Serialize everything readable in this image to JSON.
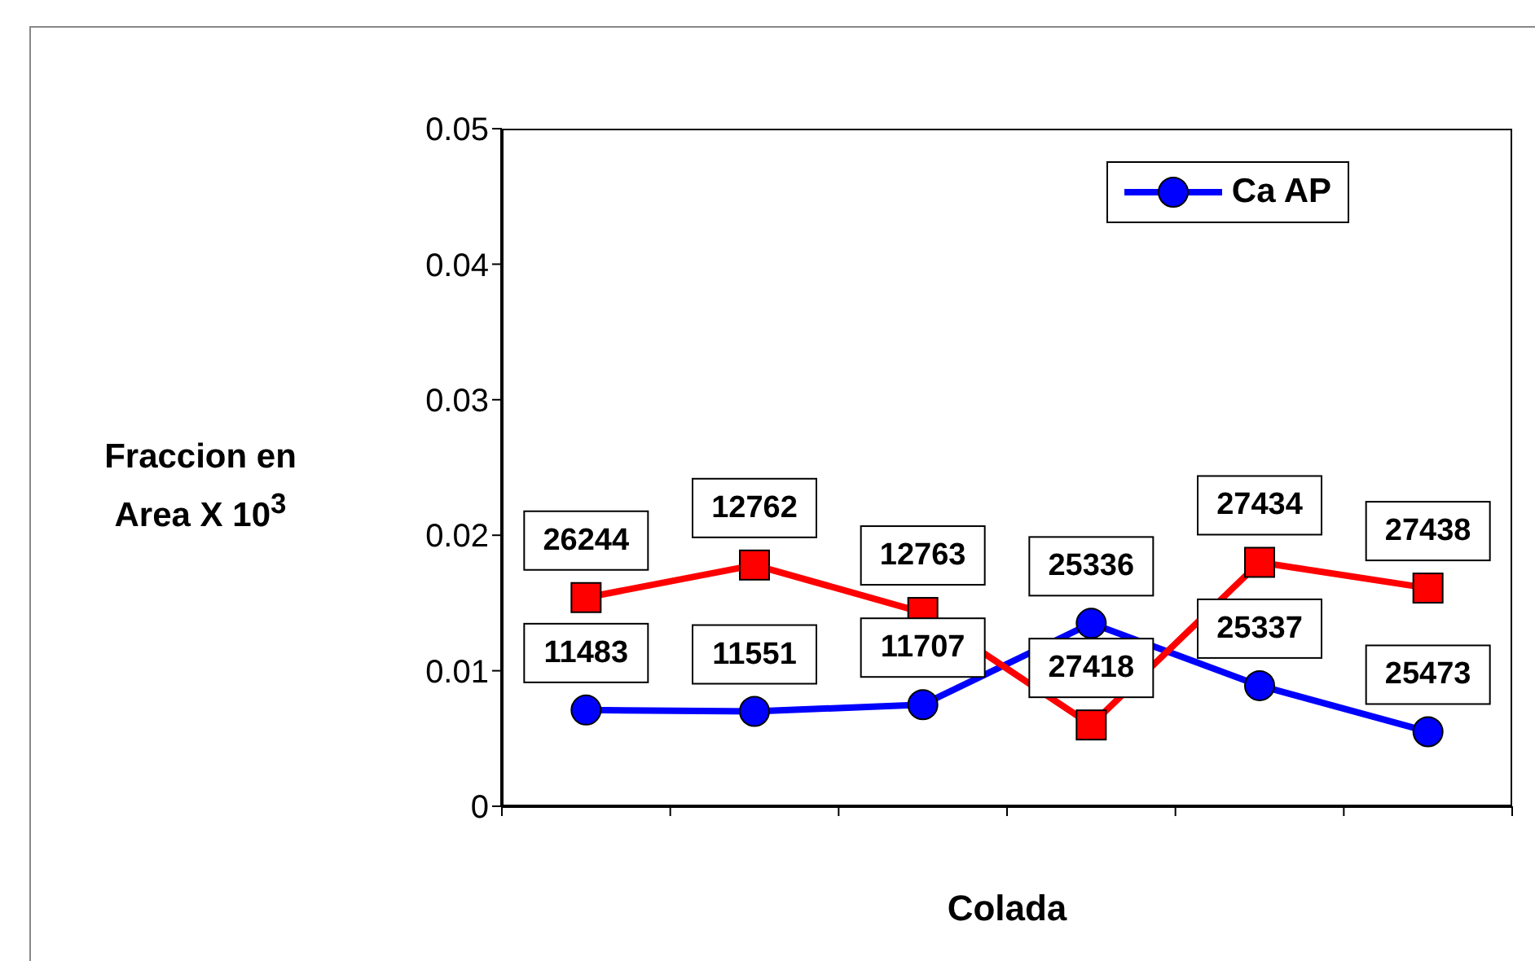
{
  "chart_data": {
    "type": "line",
    "xlabel": "Colada",
    "ylabel": "Fraccion en Area X 10$^{3}$",
    "categories": [
      null,
      null,
      null,
      null,
      null,
      null
    ],
    "series": [
      {
        "name": "Ca AP",
        "color": "#0000ff",
        "marker": "circle",
        "values": [
          0.0071,
          0.007,
          0.0075,
          0.0135,
          0.0089,
          0.0055
        ]
      },
      {
        "color": "#ff0000",
        "marker": "square",
        "values": [
          0.0154,
          0.0178,
          0.0143,
          0.006,
          0.018,
          0.0161
        ]
      }
    ],
    "annotations": [
      {
        "text": "11483",
        "y": 0.0071
      },
      {
        "text": "11551",
        "y": 0.007
      },
      {
        "text": "11707",
        "y": 0.0075
      },
      {
        "text": "25336",
        "y": 0.0135
      },
      {
        "text": "25337",
        "y": 0.0089
      },
      {
        "text": "25473",
        "y": 0.0055
      },
      {
        "text": "26244",
        "y": 0.0154
      },
      {
        "text": "12762",
        "y": 0.0178
      },
      {
        "text": "12763",
        "y": 0.0143
      },
      {
        "text": "27418",
        "y": 0.006
      },
      {
        "text": "27434",
        "y": 0.018
      },
      {
        "text": "27438",
        "y": 0.0161
      }
    ],
    "ylim": [
      0,
      0.05
    ],
    "yticks": [
      0,
      0.01,
      0.02,
      0.03,
      0.04,
      0.05
    ],
    "grid": false,
    "legend": "top right"
  }
}
